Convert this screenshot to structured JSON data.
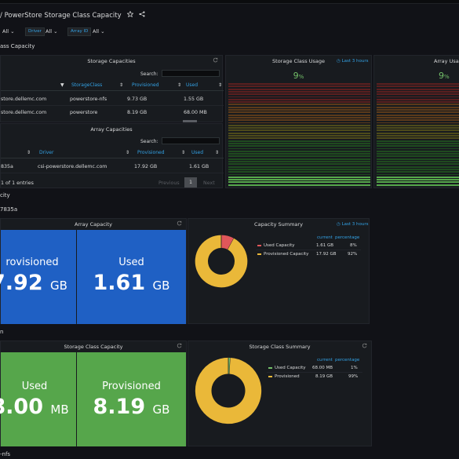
{
  "dashboard": {
    "title": "/ PowerStore Storage Class Capacity"
  },
  "variables": [
    {
      "label": "",
      "value": "All"
    },
    {
      "label": "Driver",
      "value": "All"
    },
    {
      "label": "Array ID",
      "value": "All"
    }
  ],
  "rows": {
    "storage_class_capacity": "ass Capacity",
    "array_row": "city",
    "array_id": "7835a",
    "sc_row": "n",
    "bottom": "-nfs"
  },
  "storage_capacities": {
    "title": "Storage Capacities",
    "search_label": "Search:",
    "columns": [
      "StorageClass",
      "Provisioned",
      "Used"
    ],
    "rows": [
      {
        "array": "store.dellemc.com",
        "storageclass": "powerstore-nfs",
        "provisioned": "9.73 GB",
        "used": "1.55 GB"
      },
      {
        "array": "store.dellemc.com",
        "storageclass": "powerstore",
        "provisioned": "8.19 GB",
        "used": "68.00 MB"
      }
    ]
  },
  "array_capacities": {
    "title": "Array Capacities",
    "search_label": "Search:",
    "columns": [
      "Driver",
      "Provisioned",
      "Used"
    ],
    "rows": [
      {
        "id": "835a",
        "driver": "csi-powerstore.dellemc.com",
        "provisioned": "17.92 GB",
        "used": "1.61 GB"
      }
    ],
    "entries_text": "1 of 1 entries",
    "prev_label": "Previous",
    "page_label": "1",
    "next_label": "Next"
  },
  "storage_class_usage": {
    "title": "Storage Class Usage",
    "time_range": "Last 3 hours",
    "value": "9",
    "unit": "%"
  },
  "array_usage": {
    "title": "Array Usage",
    "value": "9",
    "unit": "%"
  },
  "array_capacity": {
    "title": "Array Capacity",
    "provisioned_label": "rovisioned",
    "provisioned_value": "7.92",
    "provisioned_unit": "GB",
    "used_label": "Used",
    "used_value": "1.61",
    "used_unit": "GB"
  },
  "capacity_summary": {
    "title": "Capacity Summary",
    "time_range": "Last 3 hours",
    "col_current": "current",
    "col_percentage": "percentage",
    "items": [
      {
        "name": "Used Capacity",
        "current": "1.61 GB",
        "percentage": "8%",
        "color": "#e0575a",
        "fraction": 0.08
      },
      {
        "name": "Provisioned Capacity",
        "current": "17.92 GB",
        "percentage": "92%",
        "color": "#eab839",
        "fraction": 0.92
      }
    ]
  },
  "storage_class_capacity": {
    "title": "Storage Class Capacity",
    "used_label": "Used",
    "used_value": "8.00",
    "used_unit": "MB",
    "provisioned_label": "Provisioned",
    "provisioned_value": "8.19",
    "provisioned_unit": "GB"
  },
  "storage_class_summary": {
    "title": "Storage Class Summary",
    "col_current": "current",
    "col_percentage": "percentage",
    "items": [
      {
        "name": "Used Capacity",
        "current": "68.00 MB",
        "percentage": "1%",
        "color": "#73bf69",
        "fraction": 0.01
      },
      {
        "name": "Provisioned",
        "current": "8.19 GB",
        "percentage": "99%",
        "color": "#eab839",
        "fraction": 0.99
      }
    ]
  }
}
